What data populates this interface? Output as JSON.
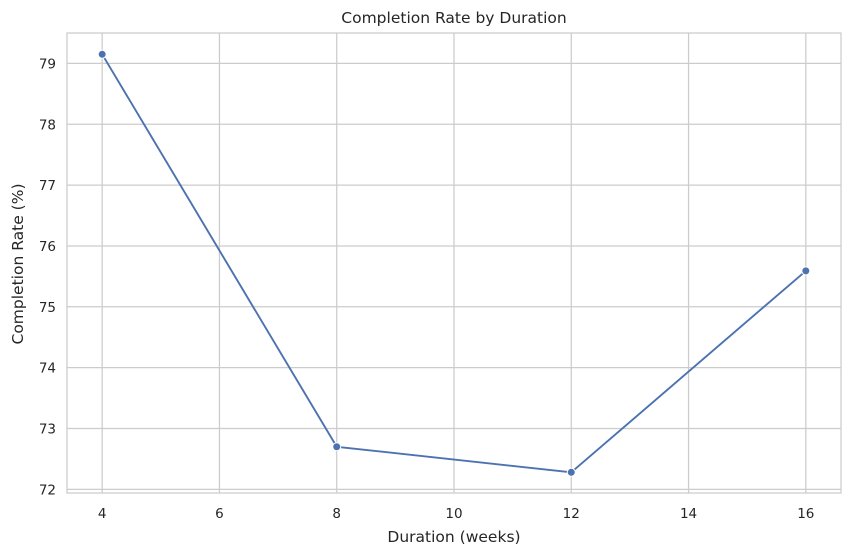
{
  "chart_data": {
    "type": "line",
    "title": "Completion Rate by Duration",
    "xlabel": "Duration (weeks)",
    "ylabel": "Completion Rate (%)",
    "x": [
      4,
      8,
      12,
      16
    ],
    "series": [
      {
        "values": [
          79.15,
          72.7,
          72.28,
          75.59
        ],
        "color": "#4c72b0",
        "marker": "circle"
      }
    ],
    "xlim": [
      3.4,
      16.6
    ],
    "ylim": [
      71.94,
      79.5
    ],
    "xticks": [
      4,
      6,
      8,
      10,
      12,
      14,
      16
    ],
    "yticks": [
      72,
      73,
      74,
      75,
      76,
      77,
      78,
      79
    ],
    "grid": true,
    "background": "#ffffff",
    "grid_color": "#cccccc",
    "spine_color": "#cccccc",
    "text_color": "#262626"
  }
}
